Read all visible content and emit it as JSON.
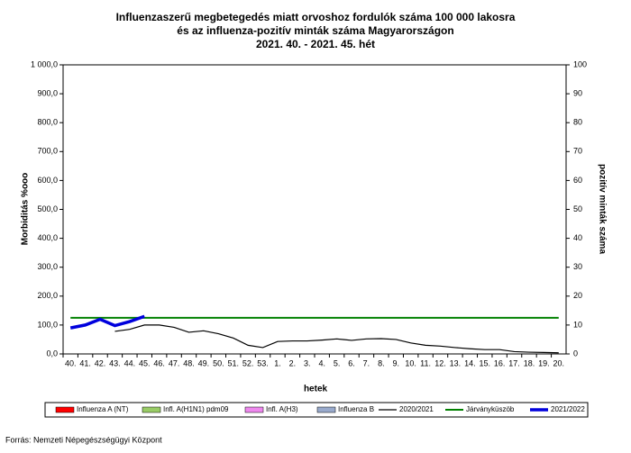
{
  "chart_data": {
    "type": "line",
    "title": [
      "Influenzaszerű megbetegedés miatt orvoshoz fordulók száma 100 000 lakosra",
      "és az influenza-pozitív minták száma Magyarországon",
      "2021. 40. - 2021. 45. hét"
    ],
    "xlabel": "hetek",
    "ylabel": "Morbiditás %ooo",
    "y2label": "pozitív minták száma",
    "source": "Forrás: Nemzeti Népegészségügyi Központ",
    "categories": [
      "40.",
      "41.",
      "42.",
      "43.",
      "44.",
      "45.",
      "46.",
      "47.",
      "48.",
      "49.",
      "50.",
      "51.",
      "52.",
      "53.",
      "1.",
      "2.",
      "3.",
      "4.",
      "5.",
      "6.",
      "7.",
      "8.",
      "9.",
      "10.",
      "11.",
      "12.",
      "13.",
      "14.",
      "15.",
      "16.",
      "17.",
      "18.",
      "19.",
      "20."
    ],
    "ylim": [
      0,
      1000
    ],
    "yticks": [
      {
        "value": 0,
        "label": "0,0"
      },
      {
        "value": 100,
        "label": "100,0"
      },
      {
        "value": 200,
        "label": "200,0"
      },
      {
        "value": 300,
        "label": "300,0"
      },
      {
        "value": 400,
        "label": "400,0"
      },
      {
        "value": 500,
        "label": "500,0"
      },
      {
        "value": 600,
        "label": "600,0"
      },
      {
        "value": 700,
        "label": "700,0"
      },
      {
        "value": 800,
        "label": "800,0"
      },
      {
        "value": 900,
        "label": "900,0"
      },
      {
        "value": 1000,
        "label": "1 000,0"
      }
    ],
    "y2lim": [
      0,
      100
    ],
    "y2ticks": [
      0,
      10,
      20,
      30,
      40,
      50,
      60,
      70,
      80,
      90,
      100
    ],
    "series": [
      {
        "name": "Influenza A (NT)",
        "color": "#ff0000",
        "type": "bar",
        "axis": "y2"
      },
      {
        "name": "Infl. A(H1N1) pdm09",
        "color": "#99cc66",
        "type": "bar",
        "axis": "y2"
      },
      {
        "name": "Infl. A(H3)",
        "color": "#ee88ee",
        "type": "bar",
        "axis": "y2"
      },
      {
        "name": "Influenza B",
        "color": "#99aacc",
        "type": "bar",
        "axis": "y2"
      },
      {
        "name": "2020/2021",
        "color": "#000000",
        "type": "line",
        "width": 1.2,
        "values": [
          null,
          null,
          null,
          78,
          85,
          100,
          100,
          92,
          75,
          80,
          70,
          55,
          30,
          22,
          43,
          45,
          45,
          48,
          52,
          47,
          52,
          53,
          50,
          38,
          30,
          27,
          22,
          18,
          15,
          15,
          8,
          6,
          5,
          4
        ]
      },
      {
        "name": "Járványküszöb",
        "color": "#008000",
        "type": "line",
        "width": 2,
        "values": [
          125,
          125,
          125,
          125,
          125,
          125,
          125,
          125,
          125,
          125,
          125,
          125,
          125,
          125,
          125,
          125,
          125,
          125,
          125,
          125,
          125,
          125,
          125,
          125,
          125,
          125,
          125,
          125,
          125,
          125,
          125,
          125,
          125,
          125
        ]
      },
      {
        "name": "2021/2022",
        "color": "#0000dd",
        "type": "line",
        "width": 3.5,
        "values": [
          90,
          100,
          120,
          98,
          112,
          130,
          null,
          null,
          null,
          null,
          null,
          null,
          null,
          null,
          null,
          null,
          null,
          null,
          null,
          null,
          null,
          null,
          null,
          null,
          null,
          null,
          null,
          null,
          null,
          null,
          null,
          null,
          null,
          null
        ]
      }
    ]
  }
}
